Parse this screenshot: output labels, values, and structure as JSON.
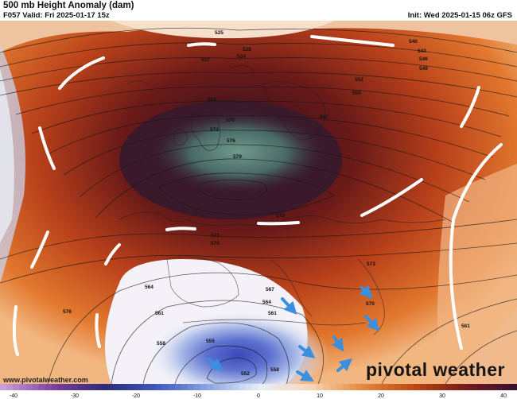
{
  "header": {
    "title": "500 mb Height Anomaly (dam)",
    "valid": "F057 Valid: Fri 2025-01-17 15z",
    "init": "Init: Wed 2025-01-15 06z GFS"
  },
  "source": "www.pivotalweather.com",
  "brand": "pivotal weather",
  "contour_labels": [
    "525",
    "528",
    "534",
    "537",
    "540",
    "543",
    "546",
    "549",
    "552",
    "555",
    "558",
    "561",
    "564",
    "567",
    "570",
    "573",
    "576",
    "579"
  ],
  "colorbar": {
    "ticks": [
      "-40",
      "-30",
      "-20",
      "-10",
      "0",
      "10",
      "20",
      "30",
      "40"
    ],
    "colors": [
      "#c8a0d8",
      "#7a3fa0",
      "#2e2a78",
      "#3e58c0",
      "#8aa4e0",
      "#e8eef8",
      "#f6d8bc",
      "#e88a40",
      "#c04a14",
      "#7a1a18",
      "#3a1030"
    ]
  },
  "annotations": {
    "trough_outline_color": "#ffffff",
    "wind_arrow_color": "#3b8fe0"
  }
}
